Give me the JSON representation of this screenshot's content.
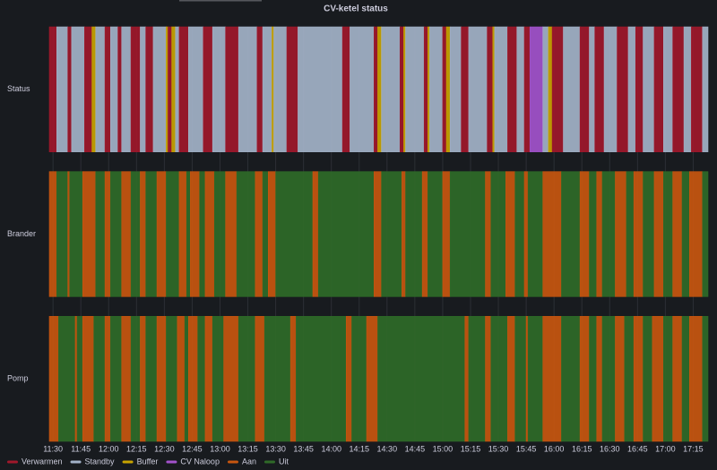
{
  "chart_data": {
    "type": "state-timeline",
    "title": "CV-ketel status",
    "xlim": [
      688,
      1043
    ],
    "xticks": [
      {
        "value": 690,
        "label": "11:30"
      },
      {
        "value": 705,
        "label": "11:45"
      },
      {
        "value": 720,
        "label": "12:00"
      },
      {
        "value": 735,
        "label": "12:15"
      },
      {
        "value": 750,
        "label": "12:30"
      },
      {
        "value": 765,
        "label": "12:45"
      },
      {
        "value": 780,
        "label": "13:00"
      },
      {
        "value": 795,
        "label": "13:15"
      },
      {
        "value": 810,
        "label": "13:30"
      },
      {
        "value": 825,
        "label": "13:45"
      },
      {
        "value": 840,
        "label": "14:00"
      },
      {
        "value": 855,
        "label": "14:15"
      },
      {
        "value": 870,
        "label": "14:30"
      },
      {
        "value": 885,
        "label": "14:45"
      },
      {
        "value": 900,
        "label": "15:00"
      },
      {
        "value": 915,
        "label": "15:15"
      },
      {
        "value": 930,
        "label": "15:30"
      },
      {
        "value": 945,
        "label": "15:45"
      },
      {
        "value": 960,
        "label": "16:00"
      },
      {
        "value": 975,
        "label": "16:15"
      },
      {
        "value": 990,
        "label": "16:30"
      },
      {
        "value": 1005,
        "label": "16:45"
      },
      {
        "value": 1020,
        "label": "17:00"
      },
      {
        "value": 1035,
        "label": "17:15"
      }
    ],
    "grid": true,
    "states": [
      {
        "name": "Verwarmen",
        "color": "#a0182b"
      },
      {
        "name": "Standby",
        "color": "#a3b2c8"
      },
      {
        "name": "Buffer",
        "color": "#c9a400"
      },
      {
        "name": "CV Naloop",
        "color": "#a352cc"
      },
      {
        "name": "Aan",
        "color": "#c8560f"
      },
      {
        "name": "Uit",
        "color": "#2f6a28"
      }
    ],
    "rows": [
      {
        "name": "Status",
        "starts": [
          688,
          692,
          698,
          700,
          707,
          711,
          713,
          718,
          721,
          725,
          727,
          732,
          737,
          740,
          744,
          751,
          752,
          754,
          756,
          758,
          763,
          771,
          776,
          783,
          790,
          800,
          803,
          808,
          809,
          816,
          822,
          846,
          850,
          863,
          865,
          867,
          877,
          879,
          880,
          890,
          892,
          893,
          900,
          902,
          904,
          910,
          914,
          924,
          927,
          928,
          935,
          940,
          944,
          947,
          954,
          957,
          959,
          965,
          974,
          979,
          982,
          987,
          994,
          1000,
          1004,
          1008,
          1014,
          1019,
          1024,
          1030,
          1034,
          1040
        ],
        "states": [
          0,
          1,
          0,
          1,
          0,
          2,
          1,
          0,
          1,
          0,
          1,
          0,
          1,
          0,
          1,
          2,
          0,
          2,
          1,
          0,
          1,
          0,
          1,
          0,
          1,
          0,
          1,
          2,
          1,
          0,
          1,
          0,
          1,
          0,
          2,
          1,
          0,
          2,
          1,
          0,
          2,
          1,
          0,
          2,
          1,
          0,
          1,
          0,
          2,
          1,
          0,
          1,
          0,
          3,
          1,
          2,
          0,
          1,
          0,
          1,
          0,
          1,
          0,
          1,
          0,
          1,
          0,
          1,
          0,
          1,
          0,
          1
        ]
      },
      {
        "name": "Brander",
        "starts": [
          688,
          692,
          698,
          699,
          706,
          713,
          718,
          721,
          727,
          732,
          737,
          740,
          746,
          751,
          758,
          762,
          764,
          769,
          772,
          777,
          783,
          789,
          799,
          803,
          806,
          810,
          830,
          833,
          863,
          867,
          878,
          880,
          889,
          892,
          900,
          904,
          923,
          926,
          934,
          939,
          944,
          946,
          954,
          964,
          974,
          979,
          983,
          986,
          993,
          999,
          1003,
          1008,
          1014,
          1019,
          1024,
          1029,
          1033,
          1040
        ],
        "states": [
          4,
          5,
          4,
          5,
          4,
          5,
          4,
          5,
          4,
          5,
          4,
          5,
          4,
          5,
          4,
          5,
          4,
          5,
          4,
          5,
          4,
          5,
          4,
          5,
          4,
          5,
          4,
          5,
          4,
          5,
          4,
          5,
          4,
          5,
          4,
          5,
          4,
          5,
          4,
          5,
          4,
          5,
          4,
          5,
          4,
          5,
          4,
          5,
          4,
          5,
          4,
          5,
          4,
          5,
          4,
          5,
          4,
          5
        ]
      },
      {
        "name": "Pomp",
        "starts": [
          688,
          693,
          702,
          703,
          706,
          712,
          718,
          721,
          727,
          732,
          737,
          740,
          746,
          751,
          757,
          761,
          763,
          768,
          772,
          776,
          782,
          790,
          799,
          804,
          818,
          821,
          848,
          851,
          859,
          865,
          912,
          914,
          923,
          926,
          935,
          939,
          945,
          946,
          954,
          964,
          974,
          979,
          983,
          986,
          993,
          998,
          1003,
          1008,
          1013,
          1019,
          1024,
          1029,
          1033,
          1040
        ],
        "states": [
          4,
          5,
          4,
          5,
          4,
          5,
          4,
          5,
          4,
          5,
          4,
          5,
          4,
          5,
          4,
          5,
          4,
          5,
          4,
          5,
          4,
          5,
          4,
          5,
          4,
          5,
          4,
          5,
          4,
          5,
          4,
          5,
          4,
          5,
          4,
          5,
          4,
          5,
          4,
          5,
          4,
          5,
          4,
          5,
          4,
          5,
          4,
          5,
          4,
          5,
          4,
          5,
          4,
          5
        ]
      }
    ]
  }
}
